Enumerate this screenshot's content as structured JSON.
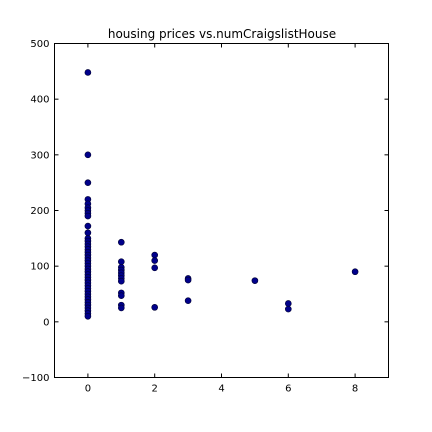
{
  "chart_data": {
    "type": "scatter",
    "title": "housing prices vs.numCraigslistHouse",
    "xlabel": "",
    "ylabel": "",
    "xlim": [
      -1,
      9
    ],
    "ylim": [
      -100,
      500
    ],
    "xticks": [
      0,
      2,
      4,
      6,
      8
    ],
    "yticks": [
      -100,
      0,
      100,
      200,
      300,
      400,
      500
    ],
    "xtick_labels": [
      "0",
      "2",
      "4",
      "6",
      "8"
    ],
    "ytick_labels": [
      "−100",
      "0",
      "100",
      "200",
      "300",
      "400",
      "500"
    ],
    "grid": false,
    "marker_color": "#00008b",
    "points": [
      {
        "x": 0,
        "y": 448
      },
      {
        "x": 0,
        "y": 300
      },
      {
        "x": 0,
        "y": 250
      },
      {
        "x": 0,
        "y": 220
      },
      {
        "x": 0,
        "y": 212
      },
      {
        "x": 0,
        "y": 205
      },
      {
        "x": 0,
        "y": 200
      },
      {
        "x": 0,
        "y": 195
      },
      {
        "x": 0,
        "y": 190
      },
      {
        "x": 0,
        "y": 172
      },
      {
        "x": 0,
        "y": 160
      },
      {
        "x": 0,
        "y": 150
      },
      {
        "x": 0,
        "y": 145
      },
      {
        "x": 0,
        "y": 140
      },
      {
        "x": 0,
        "y": 135
      },
      {
        "x": 0,
        "y": 130
      },
      {
        "x": 0,
        "y": 125
      },
      {
        "x": 0,
        "y": 120
      },
      {
        "x": 0,
        "y": 115
      },
      {
        "x": 0,
        "y": 110
      },
      {
        "x": 0,
        "y": 105
      },
      {
        "x": 0,
        "y": 100
      },
      {
        "x": 0,
        "y": 95
      },
      {
        "x": 0,
        "y": 90
      },
      {
        "x": 0,
        "y": 85
      },
      {
        "x": 0,
        "y": 80
      },
      {
        "x": 0,
        "y": 75
      },
      {
        "x": 0,
        "y": 70
      },
      {
        "x": 0,
        "y": 65
      },
      {
        "x": 0,
        "y": 60
      },
      {
        "x": 0,
        "y": 55
      },
      {
        "x": 0,
        "y": 50
      },
      {
        "x": 0,
        "y": 45
      },
      {
        "x": 0,
        "y": 40
      },
      {
        "x": 0,
        "y": 35
      },
      {
        "x": 0,
        "y": 30
      },
      {
        "x": 0,
        "y": 25
      },
      {
        "x": 0,
        "y": 20
      },
      {
        "x": 0,
        "y": 15
      },
      {
        "x": 0,
        "y": 10
      },
      {
        "x": 1,
        "y": 143
      },
      {
        "x": 1,
        "y": 108
      },
      {
        "x": 1,
        "y": 98
      },
      {
        "x": 1,
        "y": 93
      },
      {
        "x": 1,
        "y": 88
      },
      {
        "x": 1,
        "y": 83
      },
      {
        "x": 1,
        "y": 78
      },
      {
        "x": 1,
        "y": 73
      },
      {
        "x": 1,
        "y": 52
      },
      {
        "x": 1,
        "y": 47
      },
      {
        "x": 1,
        "y": 30
      },
      {
        "x": 1,
        "y": 25
      },
      {
        "x": 2,
        "y": 120
      },
      {
        "x": 2,
        "y": 110
      },
      {
        "x": 2,
        "y": 97
      },
      {
        "x": 2,
        "y": 26
      },
      {
        "x": 3,
        "y": 78
      },
      {
        "x": 3,
        "y": 75
      },
      {
        "x": 3,
        "y": 38
      },
      {
        "x": 5,
        "y": 74
      },
      {
        "x": 6,
        "y": 33
      },
      {
        "x": 6,
        "y": 23
      },
      {
        "x": 8,
        "y": 90
      }
    ]
  }
}
